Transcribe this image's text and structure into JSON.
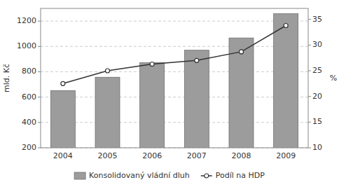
{
  "chart_data": {
    "type": "bar",
    "categories": [
      "2004",
      "2005",
      "2006",
      "2007",
      "2008",
      "2009"
    ],
    "series": [
      {
        "name": "Konsolidovaný vládní dluh",
        "type": "bar",
        "color": "#9c9c9c",
        "values": [
          652,
          757,
          872,
          970,
          1067,
          1258
        ]
      },
      {
        "name": "Podíl na HDP",
        "type": "line",
        "color": "#333333",
        "marker": "circle",
        "axis": "y2",
        "values": [
          22.5,
          25.0,
          26.3,
          27.0,
          28.7,
          33.8
        ]
      }
    ],
    "ylabel": "mld. Kč",
    "y2label": "%",
    "ylim": [
      200,
      1300
    ],
    "yticks": [
      200,
      400,
      600,
      800,
      1000,
      1200
    ],
    "y2lim": [
      10,
      37.14
    ],
    "y2ticks": [
      10,
      15,
      20,
      25,
      30,
      35
    ],
    "grid": true,
    "legend": "bottom"
  }
}
